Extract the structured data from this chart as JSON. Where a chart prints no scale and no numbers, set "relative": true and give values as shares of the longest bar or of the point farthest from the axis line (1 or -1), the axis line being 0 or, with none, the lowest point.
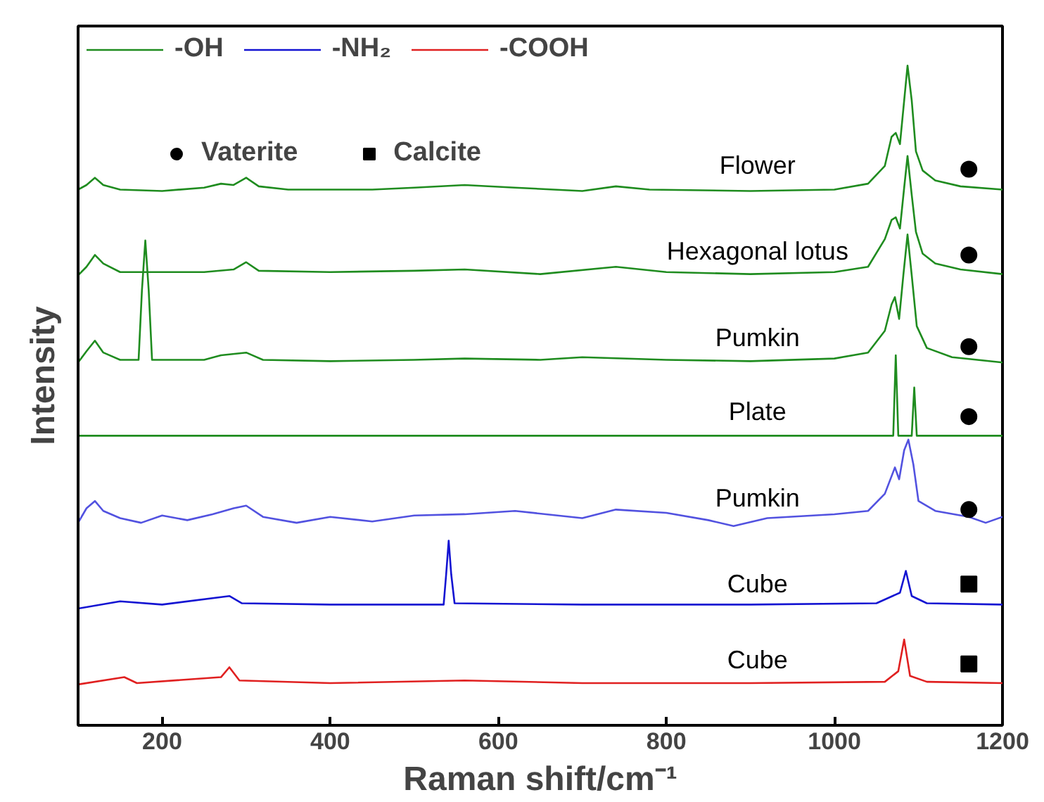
{
  "chart_data": {
    "type": "line",
    "relative": true,
    "xlabel": "Raman shift/cm⁻¹",
    "ylabel": "Intensity",
    "xlim": [
      100,
      1200
    ],
    "xticks": [
      200,
      400,
      600,
      800,
      1000,
      1200
    ],
    "grid": false,
    "legend": "top left",
    "marker": "none",
    "line_style": "solid",
    "series": [
      {
        "name": "-OH",
        "color": "#1f8c1f",
        "x": [
          100,
          110,
          120,
          130,
          150,
          200,
          250,
          270,
          285,
          300,
          315,
          350,
          450,
          500,
          560,
          620,
          700,
          740,
          780,
          900,
          1000,
          1040,
          1060,
          1068,
          1073,
          1078,
          1083,
          1087,
          1092,
          1097,
          1105,
          1120,
          1150,
          1200
        ],
        "values": [
          0.812,
          0.819,
          0.83,
          0.819,
          0.812,
          0.81,
          0.815,
          0.821,
          0.819,
          0.83,
          0.817,
          0.812,
          0.812,
          0.815,
          0.819,
          0.815,
          0.81,
          0.817,
          0.812,
          0.81,
          0.812,
          0.821,
          0.848,
          0.892,
          0.898,
          0.881,
          0.947,
          1.0,
          0.947,
          0.87,
          0.841,
          0.826,
          0.817,
          0.812
        ]
      },
      {
        "color": "#1f8c1f",
        "x": [
          100,
          110,
          120,
          130,
          150,
          250,
          285,
          300,
          315,
          400,
          500,
          560,
          650,
          740,
          800,
          900,
          1000,
          1040,
          1060,
          1068,
          1073,
          1078,
          1083,
          1087,
          1092,
          1097,
          1105,
          1120,
          1150,
          1200
        ],
        "values": [
          0.682,
          0.695,
          0.713,
          0.7,
          0.687,
          0.687,
          0.691,
          0.702,
          0.689,
          0.687,
          0.689,
          0.691,
          0.684,
          0.695,
          0.687,
          0.684,
          0.687,
          0.695,
          0.737,
          0.766,
          0.77,
          0.753,
          0.815,
          0.863,
          0.804,
          0.748,
          0.715,
          0.7,
          0.691,
          0.684
        ]
      },
      {
        "color": "#1f8c1f",
        "x": [
          100,
          110,
          120,
          130,
          150,
          172,
          176,
          180,
          184,
          188,
          250,
          270,
          300,
          320,
          400,
          500,
          560,
          650,
          700,
          800,
          900,
          1000,
          1040,
          1060,
          1068,
          1072,
          1077,
          1082,
          1087,
          1092,
          1098,
          1110,
          1140,
          1200
        ],
        "values": [
          0.55,
          0.567,
          0.583,
          0.565,
          0.554,
          0.554,
          0.66,
          0.735,
          0.66,
          0.554,
          0.554,
          0.561,
          0.565,
          0.554,
          0.552,
          0.554,
          0.556,
          0.554,
          0.558,
          0.554,
          0.552,
          0.556,
          0.565,
          0.598,
          0.638,
          0.649,
          0.616,
          0.682,
          0.744,
          0.682,
          0.605,
          0.572,
          0.558,
          0.55
        ]
      },
      {
        "color": "#1f8c1f",
        "x": [
          100,
          1060,
          1070,
          1073,
          1076,
          1092,
          1095,
          1098,
          1200
        ],
        "values": [
          0.439,
          0.439,
          0.439,
          0.561,
          0.439,
          0.439,
          0.512,
          0.439,
          0.439
        ]
      },
      {
        "color": "#5252e0",
        "x": [
          100,
          110,
          120,
          130,
          150,
          175,
          200,
          230,
          260,
          285,
          300,
          320,
          360,
          400,
          450,
          500,
          560,
          620,
          700,
          740,
          800,
          850,
          880,
          920,
          1000,
          1040,
          1060,
          1072,
          1077,
          1083,
          1088,
          1094,
          1100,
          1120,
          1160,
          1180,
          1200
        ],
        "values": [
          0.307,
          0.329,
          0.34,
          0.325,
          0.314,
          0.307,
          0.318,
          0.311,
          0.32,
          0.329,
          0.333,
          0.316,
          0.307,
          0.316,
          0.309,
          0.318,
          0.32,
          0.325,
          0.314,
          0.327,
          0.322,
          0.311,
          0.302,
          0.314,
          0.32,
          0.325,
          0.351,
          0.391,
          0.373,
          0.417,
          0.433,
          0.395,
          0.34,
          0.325,
          0.316,
          0.307,
          0.316
        ]
      },
      {
        "name": "-NH₂",
        "color": "#1414d2",
        "x": [
          100,
          150,
          200,
          280,
          295,
          400,
          535,
          538,
          541,
          544,
          548,
          700,
          900,
          1050,
          1078,
          1085,
          1092,
          1110,
          1200
        ],
        "values": [
          0.177,
          0.188,
          0.183,
          0.196,
          0.185,
          0.183,
          0.183,
          0.229,
          0.28,
          0.229,
          0.185,
          0.183,
          0.183,
          0.185,
          0.201,
          0.234,
          0.196,
          0.185,
          0.183
        ]
      },
      {
        "name": "-COOH",
        "color": "#e02020",
        "x": [
          100,
          155,
          170,
          270,
          280,
          292,
          400,
          560,
          700,
          900,
          1060,
          1076,
          1083,
          1090,
          1110,
          1200
        ],
        "values": [
          0.062,
          0.073,
          0.064,
          0.073,
          0.088,
          0.068,
          0.064,
          0.068,
          0.064,
          0.064,
          0.066,
          0.082,
          0.13,
          0.075,
          0.066,
          0.064
        ]
      },
      {
        "name": "Vaterite",
        "type": "scatter",
        "marker": "circle",
        "color": "#000000",
        "x": [
          1160,
          1160,
          1160,
          1160,
          1160
        ],
        "values": [
          0.843,
          0.713,
          0.574,
          0.468,
          0.327
        ]
      },
      {
        "name": "Calcite",
        "type": "scatter",
        "marker": "square",
        "color": "#000000",
        "x": [
          1160,
          1160
        ],
        "values": [
          0.214,
          0.093
        ]
      }
    ],
    "annotations": [
      "Flower",
      "Hexagonal lotus",
      "Pumkin",
      "Plate",
      "Pumkin",
      "Cube",
      "Cube"
    ]
  }
}
